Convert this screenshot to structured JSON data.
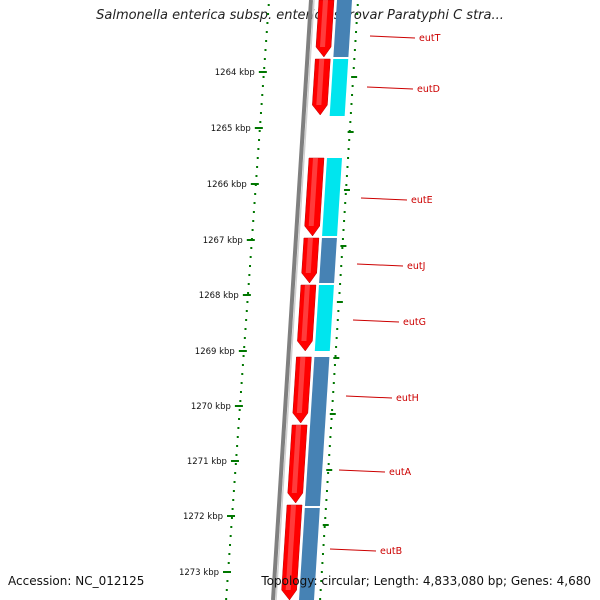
{
  "title": "Salmonella enterica subsp. enterica serovar Paratyphi C stra...",
  "footer": {
    "accession": "Accession: NC_012125",
    "summary": "Topology: circular; Length: 4,833,080 bp; Genes: 4,680"
  },
  "ticks": [
    "1264 kbp",
    "1265 kbp",
    "1266 kbp",
    "1267 kbp",
    "1268 kbp",
    "1269 kbp",
    "1270 kbp",
    "1271 kbp",
    "1272 kbp",
    "1273 kbp"
  ],
  "genes": [
    "eutT",
    "eutD",
    "eutE",
    "eutJ",
    "eutG",
    "eutH",
    "eutA",
    "eutB"
  ],
  "colors": {
    "gene_forward": "#ff0000",
    "cds_cyan": "#00e5ee",
    "cds_blue": "#4682b4",
    "backbone": "#808080",
    "ruler": "#007700",
    "label": "#cc0000"
  }
}
